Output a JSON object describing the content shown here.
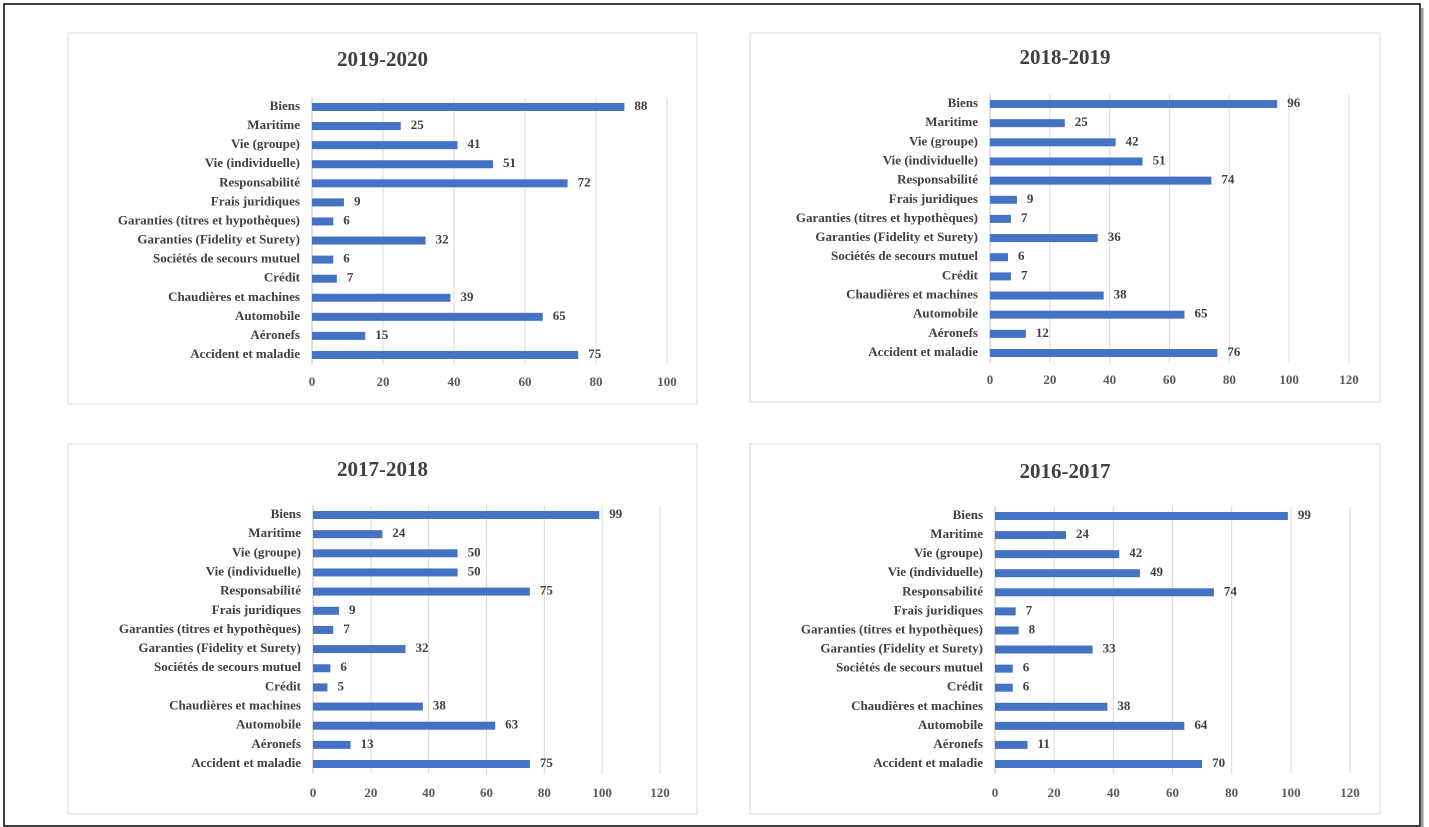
{
  "chart_data": [
    {
      "type": "bar",
      "orientation": "horizontal",
      "title": "2019-2020",
      "categories": [
        "Biens",
        "Maritime",
        "Vie (groupe)",
        "Vie (individuelle)",
        "Responsabilité",
        "Frais juridiques",
        "Garanties (titres et hypothèques)",
        "Garanties (Fidelity et Surety)",
        "Sociétés de secours mutuel",
        "Crédit",
        "Chaudières et machines",
        "Automobile",
        "Aéronefs",
        "Accident et maladie"
      ],
      "values": [
        88,
        25,
        41,
        51,
        72,
        9,
        6,
        32,
        6,
        7,
        39,
        65,
        15,
        75
      ],
      "color": "#4472c4",
      "xlim": [
        0,
        100
      ],
      "xticks": [
        0,
        20,
        40,
        60,
        80,
        100
      ],
      "grid": true
    },
    {
      "type": "bar",
      "orientation": "horizontal",
      "title": "2018-2019",
      "categories": [
        "Biens",
        "Maritime",
        "Vie (groupe)",
        "Vie (individuelle)",
        "Responsabilité",
        "Frais juridiques",
        "Garanties (titres et hypothèques)",
        "Garanties (Fidelity et Surety)",
        "Sociétés de secours mutuel",
        "Crédit",
        "Chaudières et machines",
        "Automobile",
        "Aéronefs",
        "Accident et maladie"
      ],
      "values": [
        96,
        25,
        42,
        51,
        74,
        9,
        7,
        36,
        6,
        7,
        38,
        65,
        12,
        76
      ],
      "color": "#4472c4",
      "xlim": [
        0,
        120
      ],
      "xticks": [
        0,
        20,
        40,
        60,
        80,
        100,
        120
      ],
      "grid": true
    },
    {
      "type": "bar",
      "orientation": "horizontal",
      "title": "2017-2018",
      "categories": [
        "Biens",
        "Maritime",
        "Vie (groupe)",
        "Vie (individuelle)",
        "Responsabilité",
        "Frais juridiques",
        "Garanties (titres et hypothèques)",
        "Garanties (Fidelity et Surety)",
        "Sociétés de secours mutuel",
        "Crédit",
        "Chaudières et machines",
        "Automobile",
        "Aéronefs",
        "Accident et maladie"
      ],
      "values": [
        99,
        24,
        50,
        50,
        75,
        9,
        7,
        32,
        6,
        5,
        38,
        63,
        13,
        75
      ],
      "color": "#4472c4",
      "xlim": [
        0,
        120
      ],
      "xticks": [
        0,
        20,
        40,
        60,
        80,
        100,
        120
      ],
      "grid": true
    },
    {
      "type": "bar",
      "orientation": "horizontal",
      "title": "2016-2017",
      "categories": [
        "Biens",
        "Maritime",
        "Vie (groupe)",
        "Vie (individuelle)",
        "Responsabilité",
        "Frais juridiques",
        "Garanties (titres et hypothèques)",
        "Garanties (Fidelity et Surety)",
        "Sociétés de secours mutuel",
        "Crédit",
        "Chaudières et machines",
        "Automobile",
        "Aéronefs",
        "Accident et maladie"
      ],
      "values": [
        99,
        24,
        42,
        49,
        74,
        7,
        8,
        33,
        6,
        6,
        38,
        64,
        11,
        70
      ],
      "color": "#4472c4",
      "xlim": [
        0,
        120
      ],
      "xticks": [
        0,
        20,
        40,
        60,
        80,
        100,
        120
      ],
      "grid": true
    }
  ]
}
